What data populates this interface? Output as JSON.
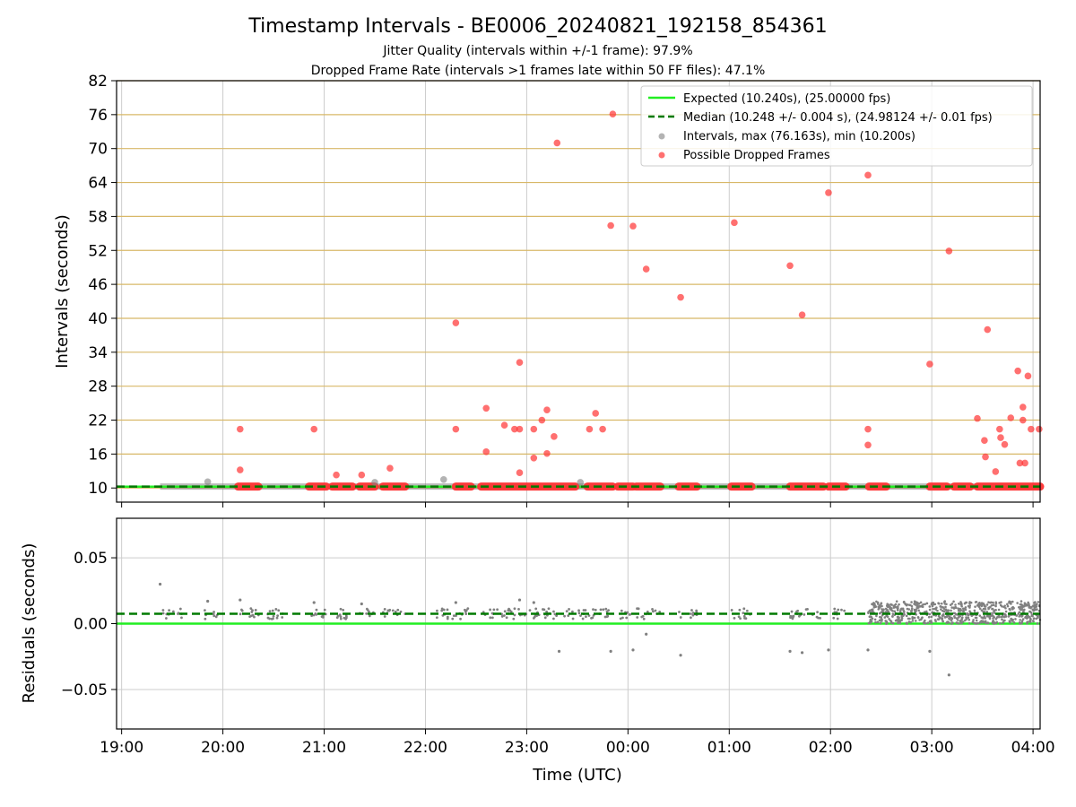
{
  "title": "Timestamp Intervals - BE0006_20240821_192158_854361",
  "subtitle_lines": [
    "Jitter Quality (intervals within +/-1 frame): 97.9%",
    "Dropped Frame Rate (intervals >1 frames late within 50 FF files): 47.1%"
  ],
  "colors": {
    "expected": "#22ee22",
    "median": "#007a00",
    "intervals": "#808080",
    "dropped": "#ff3333",
    "hgrid_top": "#d8b868",
    "grid": "#cccccc"
  },
  "chart_data": [
    {
      "type": "scatter",
      "ylabel": "Intervals (seconds)",
      "x_unit": "UTC time, hours (values >= 24 are after midnight)",
      "xlim": [
        18.95,
        28.07
      ],
      "ylim": [
        7.5,
        82
      ],
      "yticks": [
        "10",
        "16",
        "22",
        "28",
        "34",
        "40",
        "46",
        "52",
        "58",
        "64",
        "70",
        "76",
        "82"
      ],
      "grid": "horizontal gold lines at y ticks, vertical gray lines at x ticks",
      "legend": {
        "placement": "top-right",
        "entries": [
          "Expected (10.240s), (25.00000 fps)",
          "Median (10.248 +/- 0.004 s), (24.98124 +/- 0.01 fps)",
          "Intervals, max (76.163s), min (10.200s)",
          "Possible Dropped Frames"
        ]
      },
      "expected_interval": 10.24,
      "median_interval": 10.248,
      "series": [
        {
          "name": "Possible Dropped Frames",
          "points": [
            [
              20.17,
              20.4
            ],
            [
              20.17,
              13.2
            ],
            [
              20.9,
              20.4
            ],
            [
              21.12,
              12.3
            ],
            [
              21.37,
              12.3
            ],
            [
              21.65,
              13.5
            ],
            [
              22.3,
              39.2
            ],
            [
              22.3,
              20.4
            ],
            [
              22.6,
              16.4
            ],
            [
              22.6,
              24.1
            ],
            [
              22.78,
              21.1
            ],
            [
              22.88,
              20.4
            ],
            [
              22.93,
              20.4
            ],
            [
              22.93,
              32.2
            ],
            [
              22.93,
              12.7
            ],
            [
              23.07,
              15.3
            ],
            [
              23.07,
              20.4
            ],
            [
              23.15,
              22.0
            ],
            [
              23.2,
              23.8
            ],
            [
              23.2,
              16.1
            ],
            [
              23.27,
              19.1
            ],
            [
              23.3,
              71.0
            ],
            [
              23.62,
              20.4
            ],
            [
              23.68,
              23.2
            ],
            [
              23.75,
              20.4
            ],
            [
              23.83,
              56.4
            ],
            [
              23.85,
              76.1
            ],
            [
              24.05,
              56.3
            ],
            [
              24.18,
              48.7
            ],
            [
              24.52,
              43.7
            ],
            [
              25.05,
              56.9
            ],
            [
              25.6,
              49.3
            ],
            [
              25.72,
              40.6
            ],
            [
              25.98,
              62.2
            ],
            [
              26.37,
              65.3
            ],
            [
              26.37,
              20.4
            ],
            [
              26.37,
              17.6
            ],
            [
              26.98,
              31.9
            ],
            [
              27.17,
              51.9
            ],
            [
              27.45,
              22.3
            ],
            [
              27.52,
              18.4
            ],
            [
              27.53,
              15.5
            ],
            [
              27.55,
              38.0
            ],
            [
              27.63,
              12.9
            ],
            [
              27.67,
              20.4
            ],
            [
              27.68,
              18.9
            ],
            [
              27.72,
              17.7
            ],
            [
              27.78,
              22.4
            ],
            [
              27.85,
              30.7
            ],
            [
              27.87,
              14.4
            ],
            [
              27.9,
              24.3
            ],
            [
              27.9,
              22.0
            ],
            [
              27.92,
              14.4
            ],
            [
              27.95,
              29.8
            ],
            [
              27.98,
              20.4
            ],
            [
              28.06,
              20.4
            ]
          ],
          "runs_at_expected": [
            [
              20.15,
              20.35
            ],
            [
              20.85,
              21.02
            ],
            [
              21.08,
              21.28
            ],
            [
              21.35,
              21.5
            ],
            [
              21.58,
              21.8
            ],
            [
              22.3,
              22.45
            ],
            [
              22.55,
              23.48
            ],
            [
              23.6,
              23.85
            ],
            [
              23.9,
              24.05
            ],
            [
              24.08,
              24.32
            ],
            [
              24.5,
              24.68
            ],
            [
              25.02,
              25.22
            ],
            [
              25.6,
              25.93
            ],
            [
              25.98,
              26.15
            ],
            [
              26.38,
              26.55
            ],
            [
              26.98,
              27.15
            ],
            [
              27.22,
              27.38
            ],
            [
              27.45,
              28.07
            ]
          ]
        },
        {
          "name": "Intervals, max (76.163s), min (10.200s)",
          "points": [
            [
              19.85,
              11.1
            ],
            [
              21.5,
              11.0
            ],
            [
              22.18,
              11.5
            ],
            [
              23.53,
              11.0
            ]
          ],
          "range": [
            19.38,
            28.07
          ]
        }
      ]
    },
    {
      "type": "scatter",
      "ylabel": "Residuals (seconds)",
      "xlabel": "Time (UTC)",
      "xlim": [
        18.95,
        28.07
      ],
      "ylim": [
        -0.08,
        0.08
      ],
      "yticks": [
        "−0.05",
        "0.00",
        "0.05"
      ],
      "ytick_values": [
        -0.05,
        0.0,
        0.05
      ],
      "xticks": [
        "19:00",
        "20:00",
        "21:00",
        "22:00",
        "23:00",
        "00:00",
        "01:00",
        "02:00",
        "03:00",
        "04:00"
      ],
      "xtick_values": [
        19,
        20,
        21,
        22,
        23,
        24,
        25,
        26,
        27,
        28
      ],
      "grid": "on",
      "expected_residual": 0.0,
      "median_residual": 0.0075,
      "outliers": [
        [
          19.38,
          0.03
        ],
        [
          19.85,
          0.017
        ],
        [
          20.17,
          0.018
        ],
        [
          20.9,
          0.016
        ],
        [
          21.37,
          0.015
        ],
        [
          22.3,
          0.016
        ],
        [
          22.93,
          0.018
        ],
        [
          23.07,
          0.016
        ],
        [
          23.32,
          -0.021
        ],
        [
          23.83,
          -0.021
        ],
        [
          24.05,
          -0.02
        ],
        [
          24.18,
          -0.008
        ],
        [
          24.52,
          -0.024
        ],
        [
          25.6,
          -0.021
        ],
        [
          25.72,
          -0.022
        ],
        [
          25.98,
          -0.02
        ],
        [
          26.37,
          -0.02
        ],
        [
          26.98,
          -0.021
        ],
        [
          27.17,
          -0.039
        ]
      ],
      "dense_band": {
        "x_range": [
          26.37,
          28.07
        ],
        "y_range": [
          0.0,
          0.017
        ]
      }
    }
  ]
}
